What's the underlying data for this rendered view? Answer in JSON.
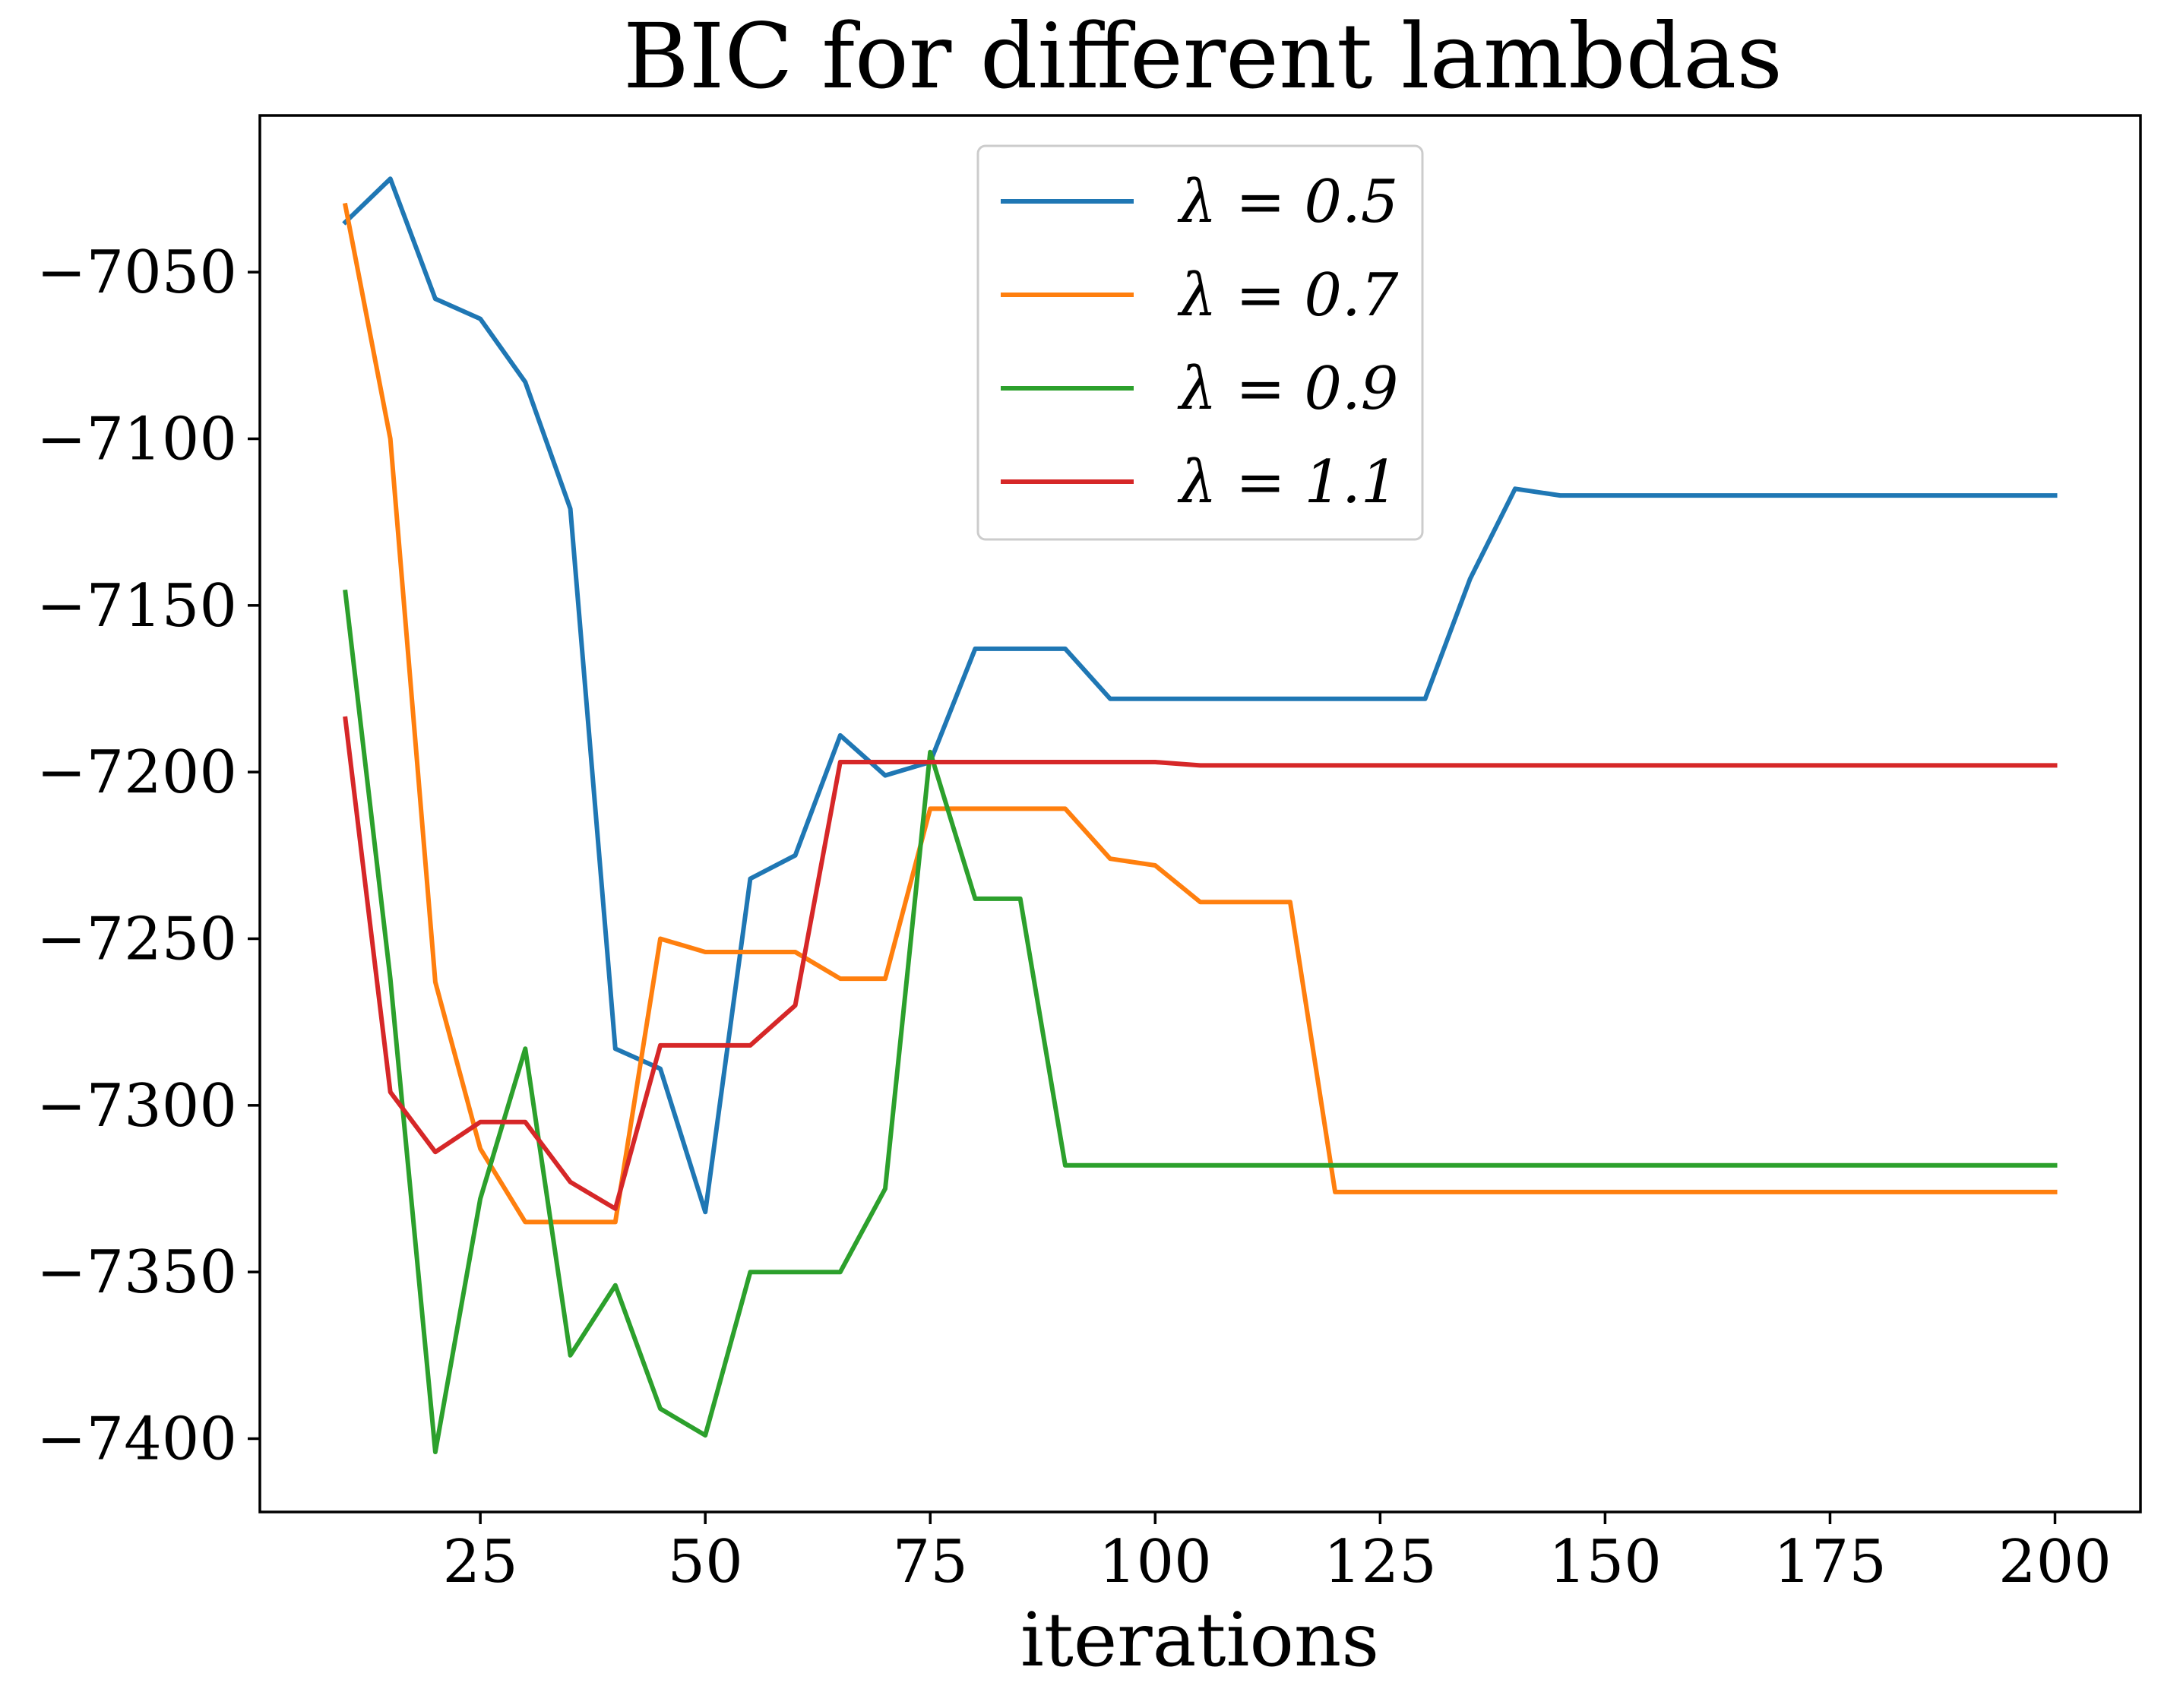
{
  "chart_data": {
    "type": "line",
    "title": "BIC for different lambdas",
    "xlabel": "iterations",
    "ylabel": "",
    "xlim": [
      0.5,
      209.5
    ],
    "ylim": [
      -7422,
      -7003
    ],
    "grid": false,
    "legend_position": "upper center",
    "x_ticks": [
      25,
      50,
      75,
      100,
      125,
      150,
      175,
      200
    ],
    "y_ticks": [
      -7050,
      -7100,
      -7150,
      -7200,
      -7250,
      -7300,
      -7350,
      -7400
    ],
    "x_tick_labels": [
      "25",
      "50",
      "75",
      "100",
      "125",
      "150",
      "175",
      "200"
    ],
    "y_tick_labels": [
      "−7050",
      "−7100",
      "−7150",
      "−7200",
      "−7250",
      "−7300",
      "−7350",
      "−7400"
    ],
    "x": [
      10,
      15,
      20,
      25,
      30,
      35,
      40,
      45,
      50,
      55,
      60,
      65,
      70,
      75,
      80,
      85,
      90,
      95,
      100,
      105,
      110,
      115,
      120,
      125,
      130,
      135,
      140,
      145,
      150,
      155,
      160,
      165,
      170,
      175,
      180,
      185,
      190,
      195,
      200
    ],
    "series": [
      {
        "name": "λ = 0.5",
        "color": "#1f77b4",
        "values": [
          -7035,
          -7022,
          -7058,
          -7064,
          -7083,
          -7121,
          -7283,
          -7289,
          -7332,
          -7232,
          -7225,
          -7189,
          -7201,
          -7197,
          -7163,
          -7163,
          -7163,
          -7178,
          -7178,
          -7178,
          -7178,
          -7178,
          -7178,
          -7178,
          -7178,
          -7142,
          -7115,
          -7117,
          -7117,
          -7117,
          -7117,
          -7117,
          -7117,
          -7117,
          -7117,
          -7117,
          -7117,
          -7117,
          -7117
        ]
      },
      {
        "name": "λ = 0.7",
        "color": "#ff7f0e",
        "values": [
          -7030,
          -7100,
          -7263,
          -7313,
          -7335,
          -7335,
          -7335,
          -7250,
          -7254,
          -7254,
          -7254,
          -7262,
          -7262,
          -7211,
          -7211,
          -7211,
          -7211,
          -7226,
          -7228,
          -7239,
          -7239,
          -7239,
          -7326,
          -7326,
          -7326,
          -7326,
          -7326,
          -7326,
          -7326,
          -7326,
          -7326,
          -7326,
          -7326,
          -7326,
          -7326,
          -7326,
          -7326,
          -7326,
          -7326
        ]
      },
      {
        "name": "λ = 0.9",
        "color": "#2ca02c",
        "values": [
          -7146,
          -7262,
          -7404,
          -7328,
          -7283,
          -7375,
          -7354,
          -7391,
          -7399,
          -7350,
          -7350,
          -7350,
          -7325,
          -7194,
          -7238,
          -7238,
          -7318,
          -7318,
          -7318,
          -7318,
          -7318,
          -7318,
          -7318,
          -7318,
          -7318,
          -7318,
          -7318,
          -7318,
          -7318,
          -7318,
          -7318,
          -7318,
          -7318,
          -7318,
          -7318,
          -7318,
          -7318,
          -7318,
          -7318
        ]
      },
      {
        "name": "λ = 1.1",
        "color": "#d62728",
        "values": [
          -7184,
          -7296,
          -7314,
          -7305,
          -7305,
          -7323,
          -7331,
          -7282,
          -7282,
          -7282,
          -7270,
          -7197,
          -7197,
          -7197,
          -7197,
          -7197,
          -7197,
          -7197,
          -7197,
          -7198,
          -7198,
          -7198,
          -7198,
          -7198,
          -7198,
          -7198,
          -7198,
          -7198,
          -7198,
          -7198,
          -7198,
          -7198,
          -7198,
          -7198,
          -7198,
          -7198,
          -7198,
          -7198,
          -7198
        ]
      }
    ]
  }
}
